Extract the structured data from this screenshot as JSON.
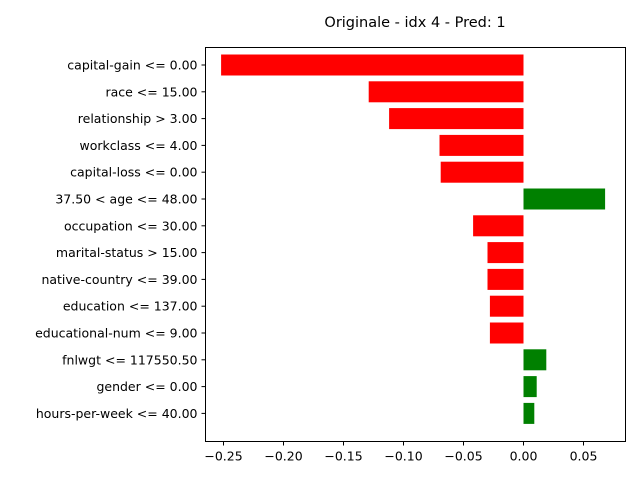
{
  "chart_data": {
    "type": "bar",
    "orientation": "horizontal",
    "title": "Originale - idx 4 - Pred: 1",
    "xlabel": "",
    "ylabel": "",
    "xlim": [
      -0.265,
      0.085
    ],
    "xticks": [
      -0.25,
      -0.2,
      -0.15,
      -0.1,
      -0.05,
      0.0,
      0.05
    ],
    "xtick_labels": [
      "−0.25",
      "−0.20",
      "−0.15",
      "−0.10",
      "−0.05",
      "0.00",
      "0.05"
    ],
    "grid": false,
    "colors": {
      "negative": "#ff0000",
      "positive": "#008000",
      "axis": "#000000",
      "background": "#ffffff"
    },
    "categories": [
      "capital-gain <= 0.00",
      "race <= 15.00",
      "relationship > 3.00",
      "workclass <= 4.00",
      "capital-loss <= 0.00",
      "37.50 < age <= 48.00",
      "occupation <= 30.00",
      "marital-status > 15.00",
      "native-country <= 39.00",
      "education <= 137.00",
      "educational-num <= 9.00",
      "fnlwgt <= 117550.50",
      "gender <= 0.00",
      "hours-per-week <= 40.00"
    ],
    "values": [
      -0.252,
      -0.129,
      -0.112,
      -0.07,
      -0.069,
      0.068,
      -0.042,
      -0.03,
      -0.03,
      -0.028,
      -0.028,
      0.019,
      0.011,
      0.009
    ]
  }
}
